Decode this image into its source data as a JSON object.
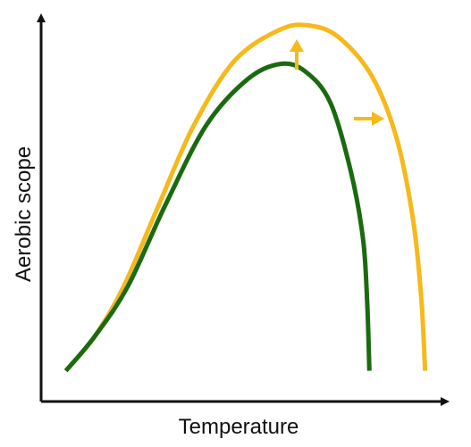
{
  "chart_data": {
    "type": "line",
    "title": "",
    "xlabel": "Temperature",
    "ylabel": "Aerobic scope",
    "grid": false,
    "legend": "none",
    "xlim": [
      0,
      100
    ],
    "ylim": [
      0,
      100
    ],
    "series": [
      {
        "color": "#f6b91c",
        "points": [
          [
            6,
            8
          ],
          [
            13,
            17
          ],
          [
            20,
            30
          ],
          [
            28,
            50
          ],
          [
            37,
            72
          ],
          [
            47,
            89
          ],
          [
            58,
            97
          ],
          [
            65,
            98
          ],
          [
            72,
            95
          ],
          [
            80,
            85
          ],
          [
            86,
            69
          ],
          [
            90,
            48
          ],
          [
            92,
            28
          ],
          [
            93,
            8
          ]
        ]
      },
      {
        "color": "#1a6a10",
        "points": [
          [
            6,
            8
          ],
          [
            13,
            17
          ],
          [
            21,
            30
          ],
          [
            30,
            51
          ],
          [
            40,
            72
          ],
          [
            50,
            84
          ],
          [
            58,
            88
          ],
          [
            64,
            86
          ],
          [
            70,
            78
          ],
          [
            75,
            60
          ],
          [
            78,
            42
          ],
          [
            79,
            25
          ],
          [
            79.5,
            8
          ]
        ]
      }
    ],
    "annotations": [
      {
        "type": "arrow",
        "direction": "up",
        "color": "#f6b91c"
      },
      {
        "type": "arrow",
        "direction": "right",
        "color": "#f6b91c"
      }
    ]
  }
}
